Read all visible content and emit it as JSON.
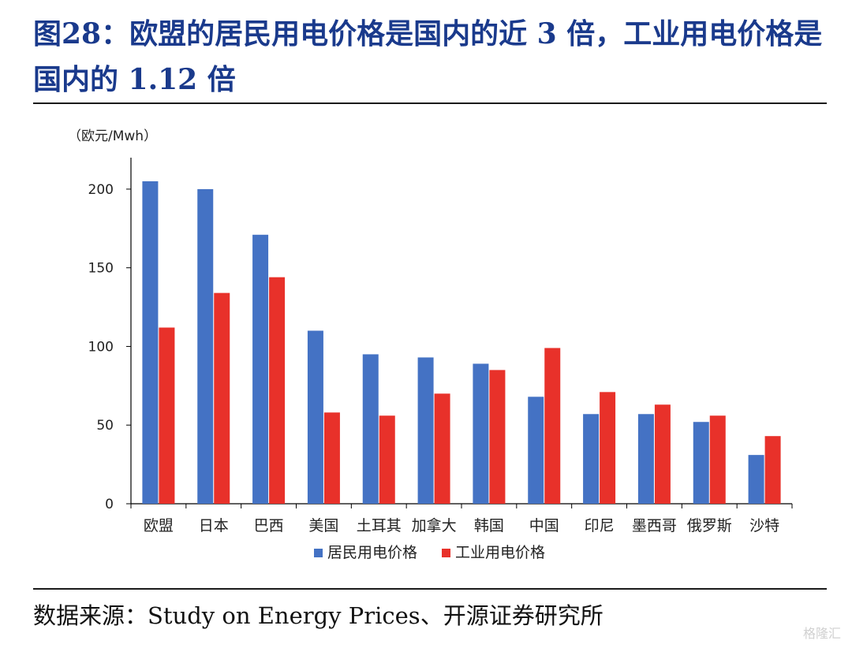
{
  "figure": {
    "title": "图28：欧盟的居民用电价格是国内的近 3 倍，工业用电价格是国内的 1.12 倍",
    "source": "数据来源：Study on Energy Prices、开源证券研究所",
    "watermark": "格隆汇"
  },
  "chart_data": {
    "type": "bar",
    "ylabel": "（欧元/Mwh）",
    "ylim": [
      0,
      220
    ],
    "yticks": [
      0,
      50,
      100,
      150,
      200
    ],
    "grid": false,
    "legend_position": "bottom",
    "categories": [
      "欧盟",
      "日本",
      "巴西",
      "美国",
      "土耳其",
      "加拿大",
      "韩国",
      "中国",
      "印尼",
      "墨西哥",
      "俄罗斯",
      "沙特"
    ],
    "series": [
      {
        "name": "居民用电价格",
        "color": "#4472c4",
        "values": [
          205,
          200,
          171,
          110,
          95,
          93,
          89,
          68,
          57,
          57,
          52,
          31
        ]
      },
      {
        "name": "工业用电价格",
        "color": "#e8312a",
        "values": [
          112,
          134,
          144,
          58,
          56,
          70,
          85,
          99,
          71,
          63,
          56,
          43
        ]
      }
    ]
  }
}
